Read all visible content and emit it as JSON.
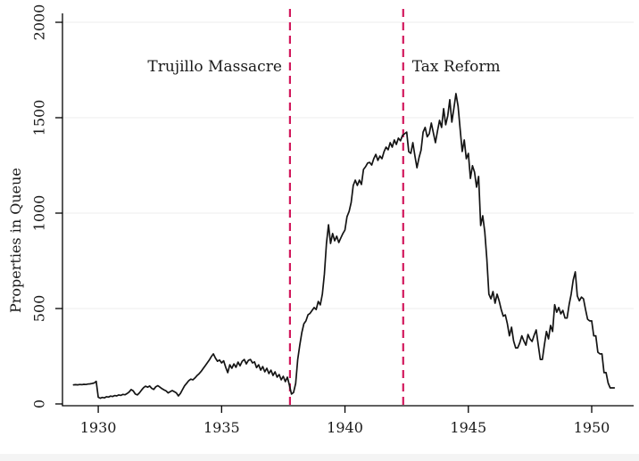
{
  "figure": {
    "background": "#ffffff"
  },
  "chart_data": {
    "type": "line",
    "title": "",
    "xlabel": "",
    "ylabel": "Properties in Queue",
    "frequency": "monthly",
    "x_start": 1929.0,
    "x_step": 0.083333,
    "x_end": 1950.917,
    "xticks": [
      1930,
      1935,
      1940,
      1945,
      1950
    ],
    "yticks": [
      0,
      500,
      1000,
      1500,
      2000
    ],
    "xlim": [
      1928.55,
      1951.7
    ],
    "ylim": [
      0,
      2070
    ],
    "grid": "horizontal light-gray gridlines at y ticks, no top/right frame",
    "legend": "none",
    "reference_lines": [
      {
        "x": 1937.77,
        "label": "Trujillo Massacre",
        "label_side": "left"
      },
      {
        "x": 1942.36,
        "label": "Tax Reform",
        "label_side": "right"
      }
    ],
    "colors": {
      "line": "#141414",
      "refline": "#d2185c",
      "grid": "#ececec",
      "axis": "#000000",
      "text": "#1a1a1a"
    },
    "series": [
      {
        "name": "Properties in Queue",
        "values": [
          100,
          101,
          100,
          102,
          101,
          103,
          102,
          104,
          105,
          107,
          110,
          118,
          35,
          30,
          34,
          32,
          38,
          36,
          41,
          39,
          44,
          42,
          47,
          45,
          50,
          48,
          54,
          62,
          75,
          68,
          52,
          47,
          58,
          72,
          85,
          93,
          88,
          94,
          82,
          76,
          90,
          96,
          88,
          80,
          74,
          68,
          58,
          64,
          70,
          64,
          58,
          42,
          55,
          75,
          95,
          108,
          122,
          130,
          126,
          136,
          148,
          158,
          170,
          185,
          200,
          215,
          230,
          248,
          262,
          240,
          224,
          230,
          215,
          226,
          192,
          164,
          205,
          187,
          210,
          192,
          219,
          200,
          224,
          233,
          210,
          228,
          233,
          215,
          220,
          190,
          205,
          177,
          196,
          168,
          187,
          159,
          177,
          149,
          168,
          140,
          154,
          126,
          145,
          117,
          140,
          98,
          52,
          60,
          107,
          233,
          308,
          374,
          420,
          435,
          467,
          475,
          490,
          505,
          495,
          537,
          519,
          575,
          682,
          841,
          939,
          841,
          893,
          855,
          879,
          846,
          870,
          893,
          911,
          981,
          1009,
          1056,
          1145,
          1173,
          1145,
          1173,
          1150,
          1229,
          1243,
          1262,
          1266,
          1252,
          1285,
          1308,
          1276,
          1299,
          1285,
          1322,
          1346,
          1332,
          1369,
          1346,
          1383,
          1360,
          1393,
          1379,
          1407,
          1416,
          1425,
          1322,
          1313,
          1369,
          1300,
          1238,
          1290,
          1330,
          1425,
          1449,
          1400,
          1416,
          1472,
          1420,
          1369,
          1430,
          1486,
          1449,
          1547,
          1463,
          1510,
          1594,
          1477,
          1550,
          1626,
          1560,
          1440,
          1323,
          1383,
          1285,
          1313,
          1182,
          1248,
          1215,
          1136,
          1192,
          935,
          986,
          902,
          760,
          575,
          551,
          589,
          528,
          575,
          540,
          495,
          460,
          467,
          420,
          357,
          402,
          330,
          294,
          294,
          320,
          357,
          330,
          308,
          364,
          340,
          327,
          360,
          388,
          310,
          233,
          233,
          310,
          380,
          341,
          411,
          380,
          520,
          481,
          505,
          472,
          490,
          450,
          450,
          520,
          575,
          650,
          692,
          566,
          540,
          560,
          551,
          495,
          444,
          435,
          435,
          357,
          357,
          271,
          262,
          262,
          164,
          164,
          110,
          84,
          84,
          84
        ]
      }
    ]
  }
}
